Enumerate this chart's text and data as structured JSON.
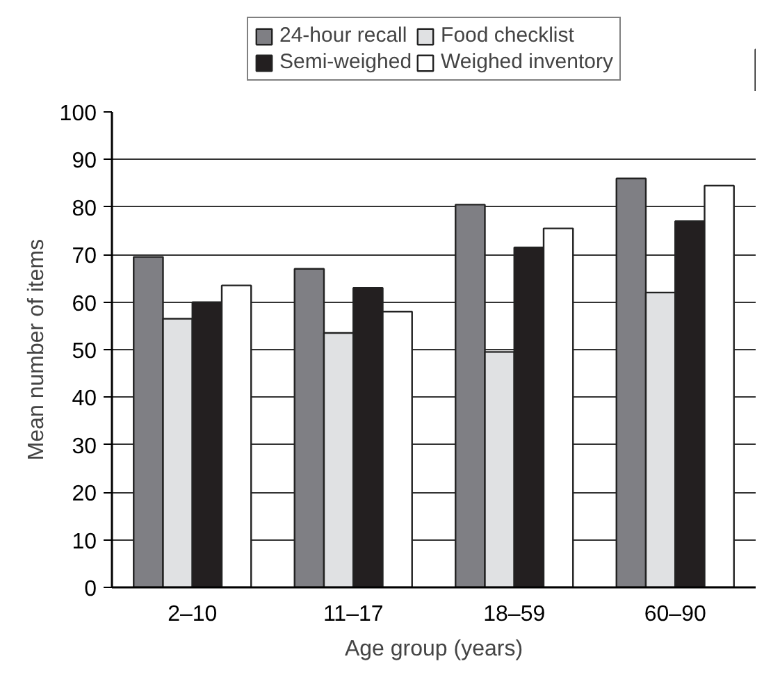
{
  "chart_data": {
    "type": "bar",
    "xlabel": "Age group (years)",
    "ylabel": "Mean number of items",
    "categories": [
      "2–10",
      "11–17",
      "18–59",
      "60–90"
    ],
    "series": [
      {
        "name": "24-hour recall",
        "color": "#7f7f84",
        "values": [
          69.5,
          67,
          80.5,
          86
        ]
      },
      {
        "name": "Food checklist",
        "color": "#e0e1e3",
        "values": [
          56.5,
          53.5,
          49.5,
          62
        ]
      },
      {
        "name": "Semi-weighed",
        "color": "#231f20",
        "values": [
          60,
          63,
          71.5,
          77
        ]
      },
      {
        "name": "Weighed inventory",
        "color": "#ffffff",
        "values": [
          63.5,
          58,
          75.5,
          84.5
        ]
      }
    ],
    "ylim": [
      0,
      100
    ],
    "yticks": [
      0,
      10,
      20,
      30,
      40,
      50,
      60,
      70,
      80,
      90,
      100
    ],
    "grid": "y",
    "legend": "top"
  }
}
